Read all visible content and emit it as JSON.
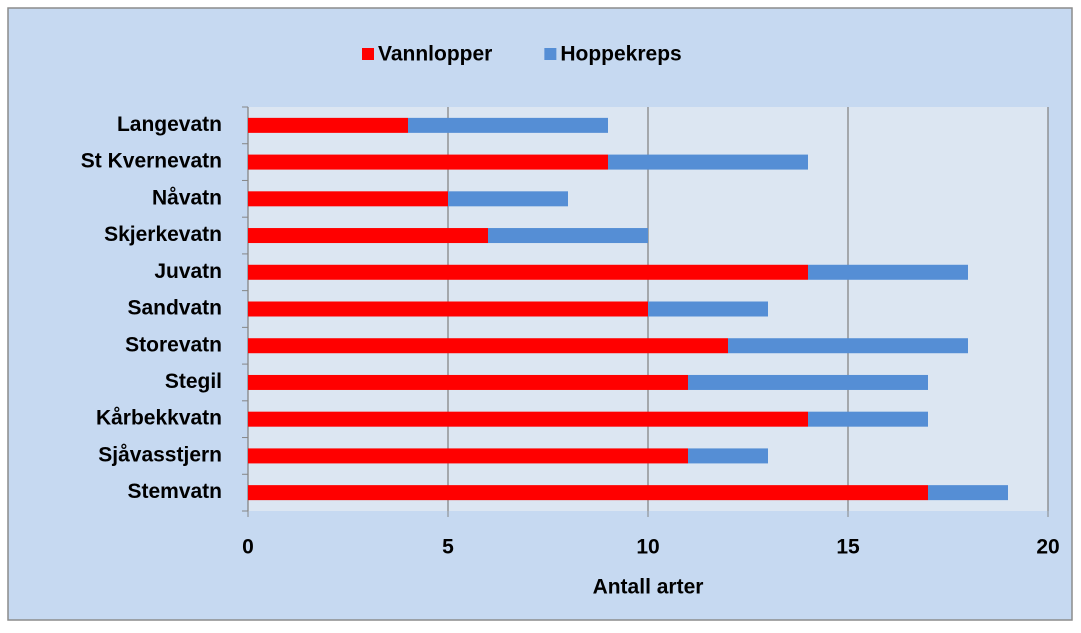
{
  "chart_data": {
    "type": "stacked-bar-horizontal",
    "x_label": "Antall arter",
    "categories": [
      "Langevatn",
      "St Kvernevatn",
      "Nåvatn",
      "Skjerkevatn",
      "Juvatn",
      "Sandvatn",
      "Storevatn",
      "Stegil",
      "Kårbekkvatn",
      "Sjåvasstjern",
      "Stemvatn"
    ],
    "series": [
      {
        "name": "Vannlopper",
        "color": "#ff0000",
        "values": [
          4,
          9,
          5,
          6,
          14,
          10,
          12,
          11,
          14,
          11,
          17
        ]
      },
      {
        "name": "Hoppekreps",
        "color": "#558ed5",
        "values": [
          5,
          5,
          3,
          4,
          4,
          3,
          6,
          6,
          3,
          2,
          2
        ]
      }
    ],
    "xlim": [
      0,
      20
    ],
    "xticks": [
      0,
      5,
      10,
      15,
      20
    ],
    "grid": true,
    "legend": "top"
  }
}
